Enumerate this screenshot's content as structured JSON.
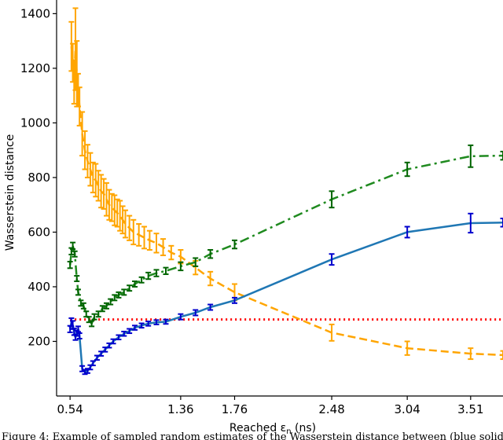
{
  "chart_data": {
    "type": "line",
    "title": "",
    "xlabel": "Reached ε",
    "xlabel_sub": "n",
    "xlabel_unit": " (ns)",
    "ylabel": "Wasserstein distance",
    "xlim": [
      0.44,
      3.75
    ],
    "ylim": [
      0,
      1450
    ],
    "x_ticks": [
      "0.54",
      "1.36",
      "1.76",
      "2.48",
      "3.04",
      "3.51"
    ],
    "x_tick_values": [
      0.54,
      1.36,
      1.76,
      2.48,
      3.04,
      3.51
    ],
    "y_ticks": [
      200,
      400,
      600,
      800,
      1000,
      1200,
      1400
    ],
    "grid": false,
    "legend": false,
    "reference_line": {
      "y": 280,
      "color": "#ff0000",
      "style": "dotted"
    },
    "series": [
      {
        "color": "#ffa500",
        "errbar_color": "#ffa500",
        "style": "dashed",
        "points": [
          [
            0.55,
            1280,
            90
          ],
          [
            0.56,
            1220,
            70
          ],
          [
            0.57,
            1150,
            80
          ],
          [
            0.58,
            1270,
            150
          ],
          [
            0.59,
            1180,
            120
          ],
          [
            0.6,
            1120,
            60
          ],
          [
            0.61,
            1060,
            70
          ],
          [
            0.63,
            960,
            80
          ],
          [
            0.65,
            900,
            70
          ],
          [
            0.67,
            860,
            60
          ],
          [
            0.69,
            830,
            60
          ],
          [
            0.71,
            800,
            55
          ],
          [
            0.73,
            790,
            60
          ],
          [
            0.75,
            770,
            55
          ],
          [
            0.77,
            750,
            60
          ],
          [
            0.79,
            740,
            55
          ],
          [
            0.81,
            720,
            60
          ],
          [
            0.83,
            700,
            55
          ],
          [
            0.85,
            690,
            50
          ],
          [
            0.87,
            680,
            55
          ],
          [
            0.89,
            670,
            50
          ],
          [
            0.91,
            660,
            55
          ],
          [
            0.93,
            645,
            50
          ],
          [
            0.95,
            630,
            50
          ],
          [
            0.98,
            615,
            45
          ],
          [
            1.01,
            600,
            45
          ],
          [
            1.05,
            590,
            40
          ],
          [
            1.09,
            580,
            40
          ],
          [
            1.13,
            570,
            35
          ],
          [
            1.18,
            560,
            35
          ],
          [
            1.23,
            545,
            30
          ],
          [
            1.29,
            525,
            25
          ],
          [
            1.36,
            510,
            25
          ],
          [
            1.47,
            470,
            25
          ],
          [
            1.58,
            430,
            25
          ],
          [
            1.76,
            380,
            30
          ],
          [
            2.48,
            232,
            30
          ],
          [
            3.04,
            175,
            25
          ],
          [
            3.51,
            155,
            20
          ],
          [
            3.75,
            150,
            15
          ]
        ]
      },
      {
        "color": "#1f8a1f",
        "errbar_color": "#006400",
        "style": "dashdot",
        "points": [
          [
            0.54,
            480,
            12
          ],
          [
            0.55,
            530,
            12
          ],
          [
            0.56,
            550,
            12
          ],
          [
            0.575,
            520,
            10
          ],
          [
            0.59,
            430,
            10
          ],
          [
            0.6,
            380,
            10
          ],
          [
            0.62,
            340,
            10
          ],
          [
            0.64,
            330,
            10
          ],
          [
            0.66,
            300,
            10
          ],
          [
            0.68,
            280,
            10
          ],
          [
            0.7,
            265,
            10
          ],
          [
            0.72,
            290,
            10
          ],
          [
            0.75,
            300,
            10
          ],
          [
            0.78,
            320,
            10
          ],
          [
            0.81,
            330,
            10
          ],
          [
            0.84,
            345,
            10
          ],
          [
            0.87,
            360,
            10
          ],
          [
            0.9,
            370,
            10
          ],
          [
            0.94,
            380,
            10
          ],
          [
            0.98,
            395,
            10
          ],
          [
            1.02,
            410,
            10
          ],
          [
            1.07,
            425,
            10
          ],
          [
            1.12,
            440,
            12
          ],
          [
            1.18,
            450,
            12
          ],
          [
            1.25,
            458,
            12
          ],
          [
            1.36,
            475,
            15
          ],
          [
            1.47,
            490,
            15
          ],
          [
            1.58,
            520,
            15
          ],
          [
            1.76,
            555,
            15
          ],
          [
            2.48,
            720,
            30
          ],
          [
            3.04,
            830,
            25
          ],
          [
            3.51,
            878,
            40
          ],
          [
            3.75,
            880,
            15
          ]
        ]
      },
      {
        "color": "#1f77b4",
        "errbar_color": "#0000cd",
        "style": "solid",
        "points": [
          [
            0.54,
            245,
            12
          ],
          [
            0.55,
            270,
            15
          ],
          [
            0.56,
            260,
            15
          ],
          [
            0.57,
            235,
            12
          ],
          [
            0.58,
            215,
            10
          ],
          [
            0.59,
            230,
            10
          ],
          [
            0.6,
            245,
            10
          ],
          [
            0.61,
            220,
            10
          ],
          [
            0.63,
            100,
            10
          ],
          [
            0.65,
            88,
            8
          ],
          [
            0.67,
            92,
            8
          ],
          [
            0.69,
            105,
            8
          ],
          [
            0.71,
            120,
            8
          ],
          [
            0.74,
            140,
            8
          ],
          [
            0.77,
            155,
            8
          ],
          [
            0.8,
            170,
            8
          ],
          [
            0.83,
            185,
            8
          ],
          [
            0.86,
            200,
            8
          ],
          [
            0.9,
            215,
            8
          ],
          [
            0.94,
            228,
            8
          ],
          [
            0.98,
            238,
            8
          ],
          [
            1.02,
            250,
            8
          ],
          [
            1.07,
            258,
            8
          ],
          [
            1.12,
            265,
            8
          ],
          [
            1.18,
            270,
            8
          ],
          [
            1.25,
            272,
            8
          ],
          [
            1.36,
            290,
            10
          ],
          [
            1.47,
            305,
            10
          ],
          [
            1.58,
            325,
            10
          ],
          [
            1.76,
            350,
            10
          ],
          [
            2.48,
            500,
            20
          ],
          [
            3.04,
            600,
            20
          ],
          [
            3.51,
            633,
            35
          ],
          [
            3.75,
            635,
            15
          ]
        ]
      }
    ]
  },
  "caption": "Figure 4: Example of sampled random estimates of the Wasserstein distance between (blue solid) ..."
}
